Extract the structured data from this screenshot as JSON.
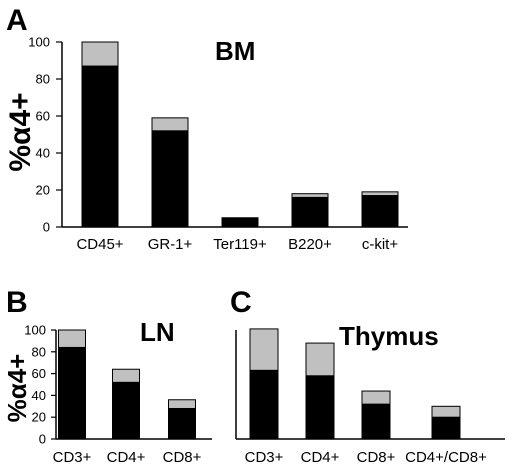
{
  "colors": {
    "bottom": "#000000",
    "top": "#c0c0c0",
    "axis": "#000000"
  },
  "chart_data": [
    {
      "panel": "A",
      "type": "bar",
      "stacked": true,
      "title": "BM",
      "ylabel": "%α4+",
      "ylim": [
        0,
        100
      ],
      "yticks": [
        0,
        20,
        40,
        60,
        80,
        100
      ],
      "categories": [
        "CD45+",
        "GR-1+",
        "Ter119+",
        "B220+",
        "c-kit+"
      ],
      "series": [
        {
          "values": [
            87,
            52,
            5,
            16,
            17
          ]
        },
        {
          "values": [
            13,
            7,
            0,
            2,
            2
          ]
        }
      ]
    },
    {
      "panel": "B",
      "type": "bar",
      "stacked": true,
      "title": "LN",
      "ylabel": "%α4+",
      "ylim": [
        0,
        100
      ],
      "yticks": [
        0,
        20,
        40,
        60,
        80,
        100
      ],
      "categories": [
        "CD3+",
        "CD4+",
        "CD8+"
      ],
      "series": [
        {
          "values": [
            84,
            52,
            28
          ]
        },
        {
          "values": [
            16,
            12,
            8
          ]
        }
      ]
    },
    {
      "panel": "C",
      "type": "bar",
      "stacked": true,
      "title": "Thymus",
      "ylabel": "",
      "ylim": [
        0,
        100
      ],
      "yticks": [],
      "categories": [
        "CD3+",
        "CD4+",
        "CD8+",
        "CD4+/CD8+"
      ],
      "series": [
        {
          "values": [
            63,
            58,
            32,
            20
          ]
        },
        {
          "values": [
            38,
            30,
            12,
            10
          ]
        }
      ]
    }
  ]
}
